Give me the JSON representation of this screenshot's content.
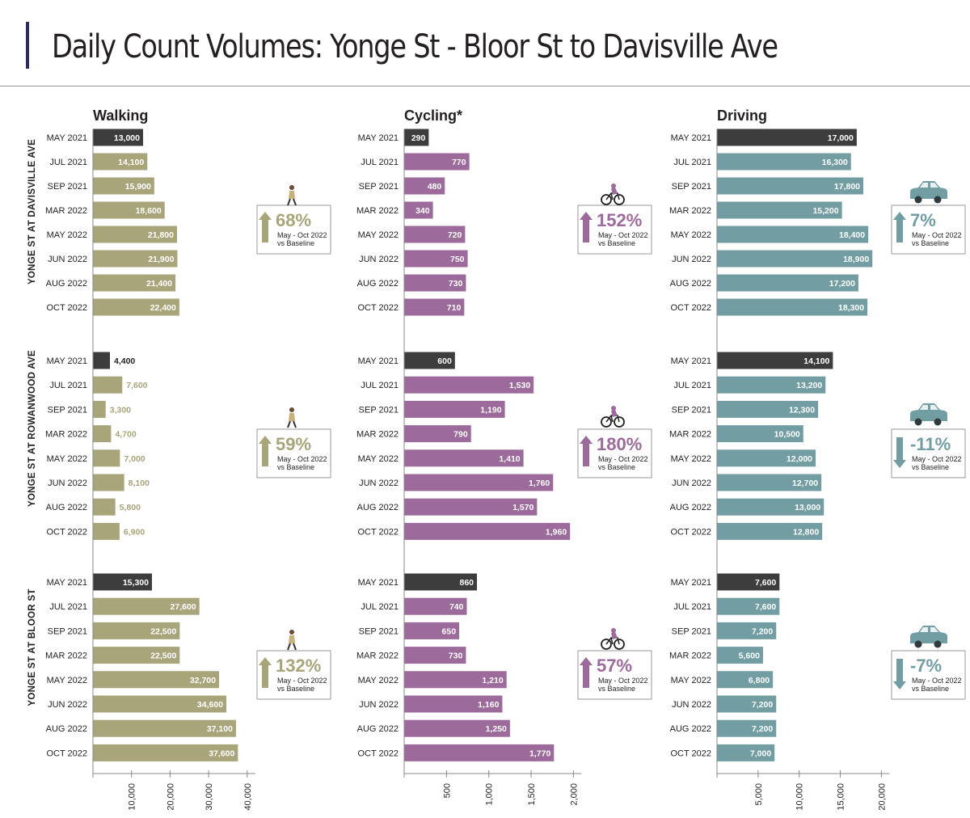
{
  "page": {
    "title": "Daily Count Volumes: Yonge St - Bloor St to Davisville Ave"
  },
  "colors": {
    "walking": "#a8a57a",
    "cycling": "#9c6a9b",
    "driving": "#729ea3",
    "baseline": "#3d3d3d",
    "accent": "#2c2c5e"
  },
  "icons": {
    "walking": "pedestrian-icon",
    "cycling": "bicycle-icon",
    "driving": "car-icon",
    "up": "arrow-up-icon",
    "down": "arrow-down-icon"
  },
  "chart_data": {
    "type": "bar",
    "orientation": "horizontal",
    "title": "Daily Count Volumes: Yonge St - Bloor St to Davisville Ave",
    "modes": [
      {
        "key": "walking",
        "label": "Walking",
        "xlim": [
          0,
          40000
        ],
        "ticks": [
          10000,
          20000,
          30000,
          40000
        ],
        "tick_labels": [
          "10,000",
          "20,000",
          "30,000",
          "40,000"
        ]
      },
      {
        "key": "cycling",
        "label": "Cycling*",
        "xlim": [
          0,
          2000
        ],
        "ticks": [
          500,
          1000,
          1500,
          2000
        ],
        "tick_labels": [
          "500",
          "1,000",
          "1,500",
          "2,000"
        ]
      },
      {
        "key": "driving",
        "label": "Driving",
        "xlim": [
          0,
          20000
        ],
        "ticks": [
          5000,
          10000,
          15000,
          20000
        ],
        "tick_labels": [
          "5,000",
          "10,000",
          "15,000",
          "20,000"
        ]
      }
    ],
    "categories": [
      "MAY 2021",
      "JUL 2021",
      "SEP 2021",
      "MAR 2022",
      "MAY 2022",
      "JUN 2022",
      "AUG 2022",
      "OCT 2022"
    ],
    "baseline_category": "MAY 2021",
    "change_caption_line1": "May - Oct 2022",
    "change_caption_line2": "vs Baseline",
    "locations": [
      {
        "label": "YONGE ST AT DAVISVILLE AVE",
        "series": {
          "walking": {
            "values": [
              13000,
              14100,
              15900,
              18600,
              21800,
              21900,
              21400,
              22400
            ],
            "labels": [
              "13,000",
              "14,100",
              "15,900",
              "18,600",
              "21,800",
              "21,900",
              "21,400",
              "22,400"
            ],
            "change": "68%",
            "direction": "up"
          },
          "cycling": {
            "values": [
              290,
              770,
              480,
              340,
              720,
              750,
              730,
              710
            ],
            "labels": [
              "290",
              "770",
              "480",
              "340",
              "720",
              "750",
              "730",
              "710"
            ],
            "change": "152%",
            "direction": "up"
          },
          "driving": {
            "values": [
              17000,
              16300,
              17800,
              15200,
              18400,
              18900,
              17200,
              18300
            ],
            "labels": [
              "17,000",
              "16,300",
              "17,800",
              "15,200",
              "18,400",
              "18,900",
              "17,200",
              "18,300"
            ],
            "change": "7%",
            "direction": "up"
          }
        }
      },
      {
        "label": "YONGE ST AT ROWANWOOD AVE",
        "series": {
          "walking": {
            "values": [
              4400,
              7600,
              3300,
              4700,
              7000,
              8100,
              5800,
              6900
            ],
            "labels": [
              "4,400",
              "7,600",
              "3,300",
              "4,700",
              "7,000",
              "8,100",
              "5,800",
              "6,900"
            ],
            "change": "59%",
            "direction": "up"
          },
          "cycling": {
            "values": [
              600,
              1530,
              1190,
              790,
              1410,
              1760,
              1570,
              1960
            ],
            "labels": [
              "600",
              "1,530",
              "1,190",
              "790",
              "1,410",
              "1,760",
              "1,570",
              "1,960"
            ],
            "change": "180%",
            "direction": "up"
          },
          "driving": {
            "values": [
              14100,
              13200,
              12300,
              10500,
              12000,
              12700,
              13000,
              12800
            ],
            "labels": [
              "14,100",
              "13,200",
              "12,300",
              "10,500",
              "12,000",
              "12,700",
              "13,000",
              "12,800"
            ],
            "change": "-11%",
            "direction": "down"
          }
        }
      },
      {
        "label": "YONGE ST AT BLOOR ST",
        "series": {
          "walking": {
            "values": [
              15300,
              27600,
              22500,
              22500,
              32700,
              34600,
              37100,
              37600
            ],
            "labels": [
              "15,300",
              "27,600",
              "22,500",
              "22,500",
              "32,700",
              "34,600",
              "37,100",
              "37,600"
            ],
            "change": "132%",
            "direction": "up"
          },
          "cycling": {
            "values": [
              860,
              740,
              650,
              730,
              1210,
              1160,
              1250,
              1770
            ],
            "labels": [
              "860",
              "740",
              "650",
              "730",
              "1,210",
              "1,160",
              "1,250",
              "1,770"
            ],
            "change": "57%",
            "direction": "up"
          },
          "driving": {
            "values": [
              7600,
              7600,
              7200,
              5600,
              6800,
              7200,
              7200,
              7000
            ],
            "labels": [
              "7,600",
              "7,600",
              "7,200",
              "5,600",
              "6,800",
              "7,200",
              "7,200",
              "7,000"
            ],
            "change": "-7%",
            "direction": "down"
          }
        }
      }
    ]
  }
}
